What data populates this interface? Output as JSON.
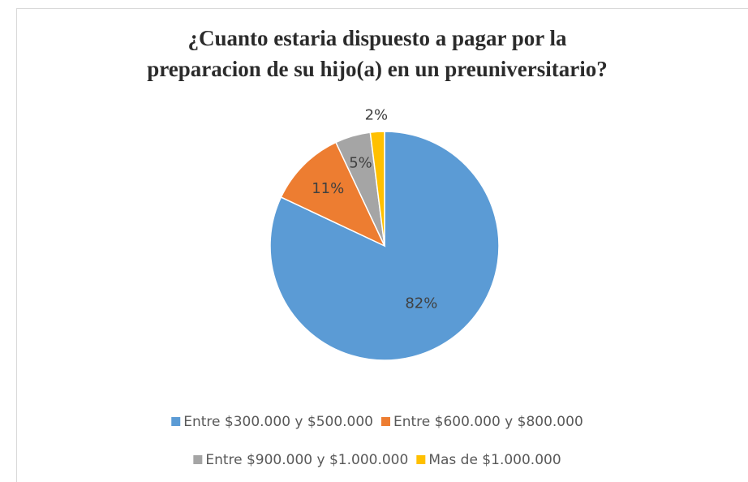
{
  "chart_data": {
    "type": "pie",
    "title": [
      "¿Cuanto estaria dispuesto a pagar por la",
      "preparacion de su hijo(a) en un preuniversitario?"
    ],
    "categories": [
      "Entre $300.000 y $500.000",
      "Entre $600.000 y $800.000",
      "Entre $900.000 y $1.000.000",
      "Mas de $1.000.000"
    ],
    "values": [
      82,
      11,
      5,
      2
    ],
    "value_labels": [
      "82%",
      "11%",
      "5%",
      "2%"
    ],
    "colors": [
      "#5b9bd5",
      "#ed7d31",
      "#a5a5a5",
      "#ffc000"
    ],
    "legend": "bottom"
  }
}
